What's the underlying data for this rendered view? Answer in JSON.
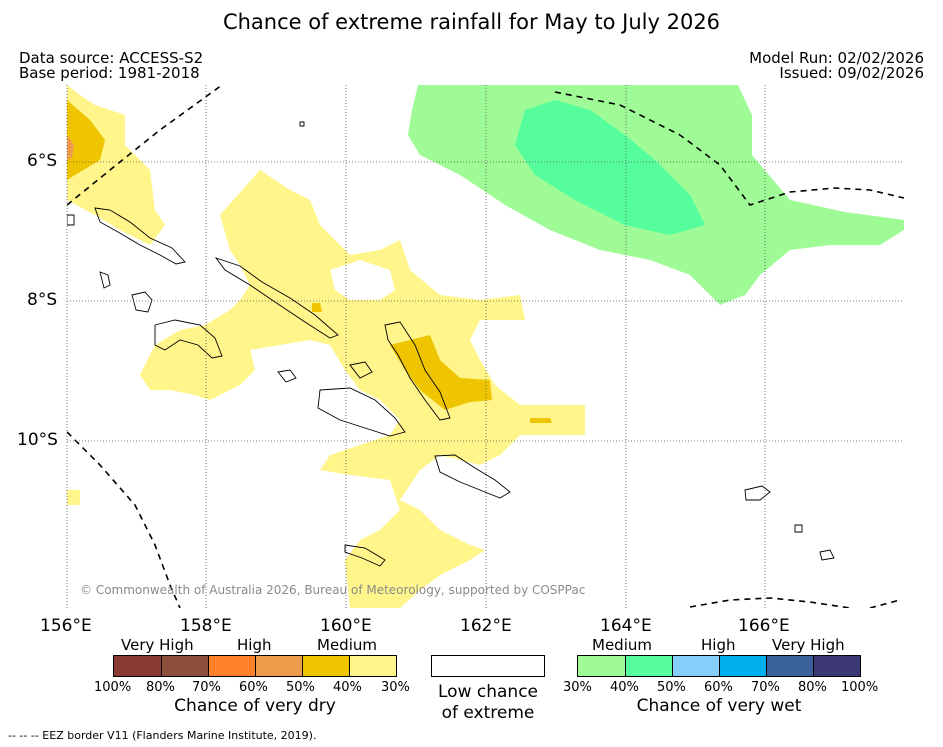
{
  "title": "Chance of extreme rainfall for May to July 2026",
  "data_source": "Data source: ACCESS-S2",
  "base_period": "Base period: 1981-2018",
  "model_run": "Model Run: 02/02/2026",
  "issued": "Issued: 09/02/2026",
  "copyright": "© Commonwealth of Australia 2026, Bureau of Meteorology, supported by COSPPac",
  "footer": "--  --  -- EEZ border V11 (Flanders Marine Institute, 2019).",
  "axes": {
    "lat_ticks": [
      "6°S",
      "8°S",
      "10°S"
    ],
    "lon_ticks": [
      "156°E",
      "158°E",
      "160°E",
      "162°E",
      "164°E",
      "166°E"
    ]
  },
  "legend": {
    "dry": {
      "headers": [
        "Very High",
        "High",
        "Medium"
      ],
      "colors": [
        "#8b3a33",
        "#8c4f3b",
        "#ff8129",
        "#ee9c4c",
        "#eec500",
        "#fff58a"
      ],
      "ticks": [
        "100%",
        "80%",
        "70%",
        "60%",
        "50%",
        "40%",
        "30%"
      ],
      "caption": "Chance of very dry"
    },
    "neutral": {
      "color": "#ffffff",
      "caption_line1": "Low chance",
      "caption_line2": "of extreme"
    },
    "wet": {
      "headers": [
        "Medium",
        "High",
        "Very High"
      ],
      "colors": [
        "#9efb95",
        "#55fd9d",
        "#86cdfc",
        "#00b0ee",
        "#3c629d",
        "#3c3878"
      ],
      "ticks": [
        "30%",
        "40%",
        "50%",
        "60%",
        "70%",
        "80%",
        "100%"
      ],
      "caption": "Chance of very wet"
    }
  }
}
